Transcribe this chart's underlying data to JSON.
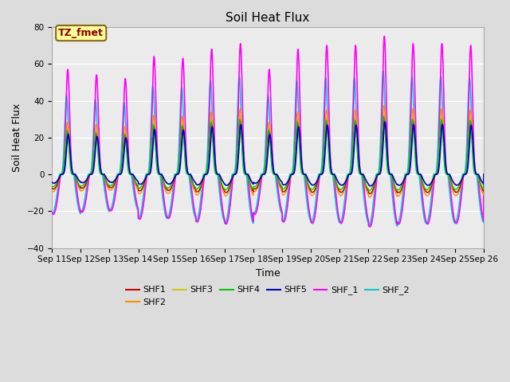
{
  "title": "Soil Heat Flux",
  "xlabel": "Time",
  "ylabel": "Soil Heat Flux",
  "ylim": [
    -40,
    80
  ],
  "yticks": [
    -40,
    -20,
    0,
    20,
    40,
    60,
    80
  ],
  "date_labels": [
    "Sep 11",
    "Sep 12",
    "Sep 13",
    "Sep 14",
    "Sep 15",
    "Sep 16",
    "Sep 17",
    "Sep 18",
    "Sep 19",
    "Sep 20",
    "Sep 21",
    "Sep 22",
    "Sep 23",
    "Sep 24",
    "Sep 25",
    "Sep 26"
  ],
  "annotation_text": "TZ_fmet",
  "annotation_bg": "#FFFF99",
  "annotation_border": "#8B6914",
  "series": {
    "SHF1": {
      "color": "#CC0000",
      "lw": 1.0
    },
    "SHF2": {
      "color": "#FF8C00",
      "lw": 1.0
    },
    "SHF3": {
      "color": "#CCCC00",
      "lw": 1.0
    },
    "SHF4": {
      "color": "#00CC00",
      "lw": 1.0
    },
    "SHF5": {
      "color": "#0000CC",
      "lw": 1.2
    },
    "SHF_1": {
      "color": "#FF00FF",
      "lw": 1.2
    },
    "SHF_2": {
      "color": "#00CCCC",
      "lw": 1.2
    }
  },
  "peak_amps": [
    57,
    54,
    52,
    64,
    63,
    68,
    71,
    57,
    68,
    70,
    70,
    75,
    71,
    71,
    70
  ],
  "bg_color": "#DCDCDC",
  "plot_bg": "#EBEBEB"
}
